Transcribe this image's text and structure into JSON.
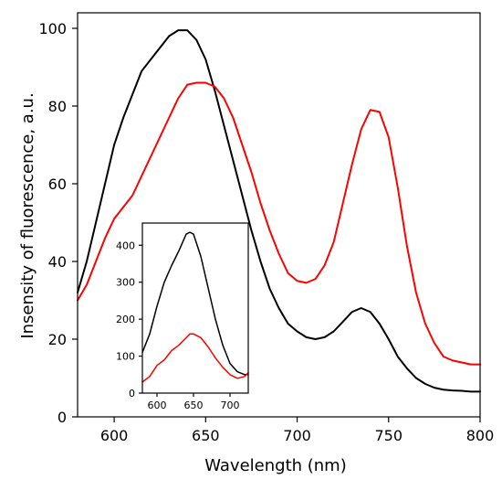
{
  "chart_data": [
    {
      "type": "line",
      "title": "",
      "xlabel": "Wavelength (nm)",
      "ylabel": "Insensity of fluorescence, a.u.",
      "xlim": [
        580,
        800
      ],
      "ylim": [
        0,
        104
      ],
      "xticks": [
        600,
        650,
        700,
        750,
        800
      ],
      "yticks": [
        0,
        20,
        40,
        60,
        80,
        100
      ],
      "grid": false,
      "series": [
        {
          "color": "#000000",
          "x": [
            580,
            585,
            590,
            595,
            600,
            605,
            610,
            615,
            620,
            625,
            630,
            635,
            640,
            645,
            650,
            655,
            660,
            665,
            670,
            675,
            680,
            685,
            690,
            695,
            700,
            705,
            710,
            715,
            720,
            725,
            730,
            735,
            740,
            745,
            750,
            755,
            760,
            765,
            770,
            775,
            780,
            785,
            790,
            795,
            800
          ],
          "y": [
            32,
            40,
            50,
            60,
            70,
            77,
            83,
            89,
            92,
            95,
            98,
            99.5,
            99.5,
            97,
            92,
            84,
            75,
            66,
            57,
            48,
            40,
            33,
            28,
            24,
            22,
            20.5,
            20,
            20.5,
            22,
            24.5,
            27,
            28,
            27,
            24,
            20,
            15.5,
            12.5,
            10,
            8.5,
            7.5,
            7,
            6.8,
            6.7,
            6.5,
            6.5
          ]
        },
        {
          "color": "#ff0000",
          "x": [
            580,
            585,
            590,
            595,
            600,
            605,
            610,
            615,
            620,
            625,
            630,
            635,
            640,
            645,
            650,
            655,
            660,
            665,
            670,
            675,
            680,
            685,
            690,
            695,
            700,
            705,
            710,
            715,
            720,
            725,
            730,
            735,
            740,
            745,
            750,
            755,
            760,
            765,
            770,
            775,
            780,
            785,
            790,
            795,
            800
          ],
          "y": [
            30,
            34,
            40,
            46,
            51,
            54,
            57,
            62,
            67,
            72,
            77,
            82,
            85.5,
            86,
            86,
            85,
            82,
            77,
            70,
            63,
            55,
            48,
            42,
            37,
            35,
            34.5,
            35.5,
            39,
            45,
            55,
            65,
            74,
            79,
            78.5,
            72,
            59,
            44,
            32,
            24,
            19,
            15.5,
            14.5,
            14,
            13.5,
            13.5
          ]
        }
      ]
    },
    {
      "type": "line",
      "title": "",
      "xlabel": "",
      "ylabel": "",
      "xlim": [
        580,
        725
      ],
      "ylim": [
        0,
        460
      ],
      "xticks": [
        600,
        650,
        700
      ],
      "yticks": [
        0,
        100,
        200,
        300,
        400
      ],
      "grid": false,
      "series": [
        {
          "color": "#000000",
          "x": [
            580,
            590,
            600,
            610,
            620,
            630,
            640,
            645,
            650,
            660,
            670,
            680,
            690,
            700,
            710,
            720,
            725
          ],
          "y": [
            110,
            160,
            235,
            300,
            345,
            385,
            430,
            435,
            430,
            370,
            285,
            200,
            130,
            80,
            58,
            50,
            50
          ]
        },
        {
          "color": "#ff0000",
          "x": [
            580,
            590,
            600,
            610,
            620,
            630,
            640,
            645,
            650,
            660,
            670,
            680,
            690,
            700,
            710,
            720,
            725
          ],
          "y": [
            30,
            45,
            75,
            90,
            115,
            130,
            150,
            160,
            160,
            150,
            125,
            95,
            70,
            50,
            40,
            45,
            55
          ]
        }
      ]
    }
  ]
}
